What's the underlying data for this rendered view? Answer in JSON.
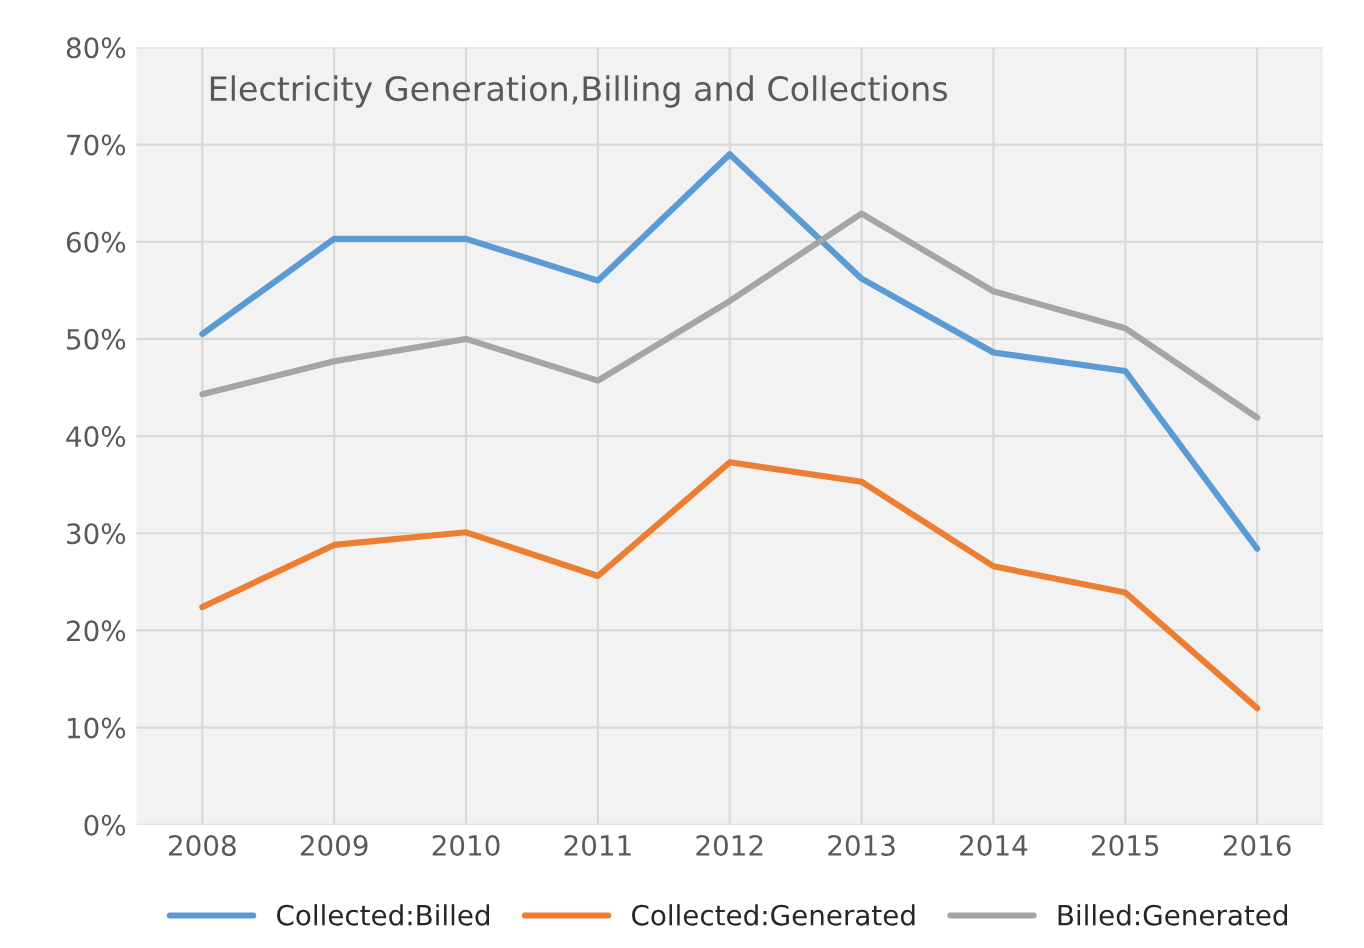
{
  "chart_data": {
    "type": "line",
    "title": "Electricity Generation,Billing and Collections",
    "categories": [
      "2008",
      "2009",
      "2010",
      "2011",
      "2012",
      "2013",
      "2014",
      "2015",
      "2016"
    ],
    "series": [
      {
        "name": "Collected:Billed",
        "color": "#5b9bd5",
        "values": [
          50.5,
          60.3,
          60.3,
          56,
          69,
          56.2,
          48.6,
          46.7,
          28.4
        ]
      },
      {
        "name": "Collected:Generated",
        "color": "#ed7d31",
        "values": [
          22.4,
          28.8,
          30.1,
          25.6,
          37.3,
          35.3,
          26.6,
          23.9,
          12
        ]
      },
      {
        "name": "Billed:Generated",
        "color": "#a5a5a5",
        "values": [
          44.3,
          47.7,
          50,
          45.7,
          53.9,
          62.9,
          54.9,
          51.1,
          41.9
        ]
      }
    ],
    "ylim": [
      0,
      80
    ],
    "yticks": [
      {
        "value": 0,
        "label": "0%"
      },
      {
        "value": 10,
        "label": "10%"
      },
      {
        "value": 20,
        "label": "20%"
      },
      {
        "value": 30,
        "label": "30%"
      },
      {
        "value": 40,
        "label": "40%"
      },
      {
        "value": 50,
        "label": "50%"
      },
      {
        "value": 60,
        "label": "60%"
      },
      {
        "value": 70,
        "label": "70%"
      },
      {
        "value": 80,
        "label": "80%"
      }
    ],
    "grid": true,
    "legend": "bottom",
    "marker": "none",
    "line_style": "solid"
  }
}
